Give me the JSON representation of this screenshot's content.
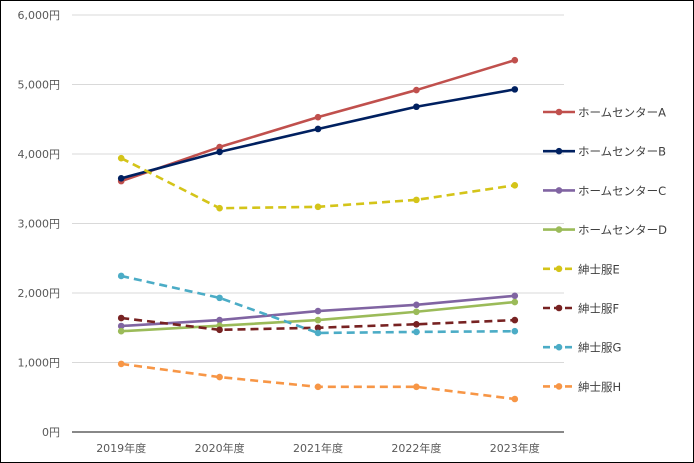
{
  "chart_data": {
    "type": "line",
    "title": "",
    "xlabel": "",
    "ylabel": "",
    "categories": [
      "2019年度",
      "2020年度",
      "2021年度",
      "2022年度",
      "2023年度"
    ],
    "ylim": [
      0,
      6000
    ],
    "yticks": [
      0,
      1000,
      2000,
      3000,
      4000,
      5000,
      6000
    ],
    "ytick_labels": [
      "0円",
      "1,000円",
      "2,000円",
      "3,000円",
      "4,000円",
      "5,000円",
      "6,000円"
    ],
    "grid": true,
    "legend_position": "right",
    "series": [
      {
        "name": "ホームセンターA",
        "color": "#C0504D",
        "dashed": false,
        "values": [
          3610,
          4100,
          4530,
          4920,
          5350
        ]
      },
      {
        "name": "ホームセンターB",
        "color": "#002060",
        "dashed": false,
        "values": [
          3650,
          4030,
          4360,
          4680,
          4930
        ]
      },
      {
        "name": "ホームセンターC",
        "color": "#8064A2",
        "dashed": false,
        "values": [
          1525,
          1610,
          1740,
          1830,
          1960
        ]
      },
      {
        "name": "ホームセンターD",
        "color": "#9BBB59",
        "dashed": false,
        "values": [
          1450,
          1530,
          1610,
          1730,
          1870
        ]
      },
      {
        "name": "紳士服E",
        "color": "#D4C419",
        "dashed": true,
        "values": [
          3940,
          3220,
          3240,
          3340,
          3550
        ]
      },
      {
        "name": "紳士服F",
        "color": "#772222",
        "dashed": true,
        "values": [
          1640,
          1470,
          1500,
          1550,
          1610
        ]
      },
      {
        "name": "紳士服G",
        "color": "#4BACC6",
        "dashed": true,
        "values": [
          2245,
          1930,
          1425,
          1440,
          1450
        ]
      },
      {
        "name": "紳士服H",
        "color": "#F79646",
        "dashed": true,
        "values": [
          980,
          790,
          650,
          650,
          475
        ]
      }
    ]
  }
}
